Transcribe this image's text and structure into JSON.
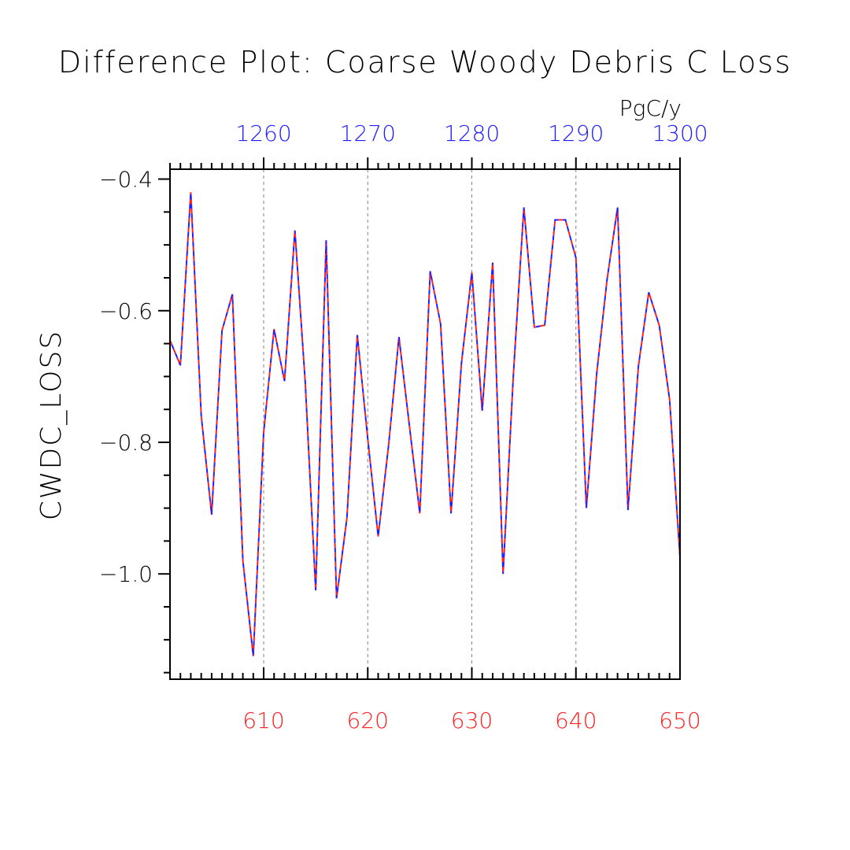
{
  "chart_data": {
    "type": "line",
    "title": "Difference Plot: Coarse Woody Debris C Loss",
    "units": "PgC/y",
    "ylabel": "CWDC_LOSS",
    "xlabel": "",
    "ylim": [
      -1.16,
      -0.385
    ],
    "bottom_axis": {
      "range": [
        601,
        650
      ],
      "ticks": [
        610,
        620,
        630,
        640,
        650
      ],
      "tick_labels": [
        "610",
        "620",
        "630",
        "640",
        "650"
      ],
      "color": "#ff2020"
    },
    "top_axis": {
      "range": [
        1251,
        1300
      ],
      "ticks": [
        1260,
        1270,
        1280,
        1290,
        1300
      ],
      "tick_labels": [
        "1260",
        "1270",
        "1280",
        "1290",
        "1300"
      ],
      "color": "#2020ff"
    },
    "y_ticks": [
      -0.4,
      -0.6,
      -0.8,
      -1.0
    ],
    "y_tick_labels": [
      "−0.4",
      "−0.6",
      "−0.8",
      "−1.0"
    ],
    "x": [
      601,
      602,
      603,
      604,
      605,
      606,
      607,
      608,
      609,
      610,
      611,
      612,
      613,
      614,
      615,
      616,
      617,
      618,
      619,
      620,
      621,
      622,
      623,
      624,
      625,
      626,
      627,
      628,
      629,
      630,
      631,
      632,
      633,
      634,
      635,
      636,
      637,
      638,
      639,
      640,
      641,
      642,
      643,
      644,
      645,
      646,
      647,
      648,
      649,
      650
    ],
    "series": [
      {
        "color": "#ff2020",
        "dash": true,
        "values": [
          -0.645,
          -0.683,
          -0.42,
          -0.76,
          -0.91,
          -0.63,
          -0.575,
          -0.98,
          -1.125,
          -0.785,
          -0.628,
          -0.707,
          -0.478,
          -0.71,
          -1.025,
          -0.493,
          -1.037,
          -0.915,
          -0.637,
          -0.795,
          -0.943,
          -0.805,
          -0.64,
          -0.775,
          -0.908,
          -0.54,
          -0.62,
          -0.908,
          -0.68,
          -0.542,
          -0.752,
          -0.527,
          -1.0,
          -0.695,
          -0.443,
          -0.625,
          -0.622,
          -0.462,
          -0.462,
          -0.52,
          -0.9,
          -0.695,
          -0.552,
          -0.443,
          -0.903,
          -0.685,
          -0.572,
          -0.622,
          -0.735,
          -0.975
        ]
      },
      {
        "color": "#2020ff",
        "dash": true,
        "values": [
          -0.645,
          -0.683,
          -0.42,
          -0.76,
          -0.91,
          -0.63,
          -0.575,
          -0.98,
          -1.125,
          -0.785,
          -0.628,
          -0.707,
          -0.478,
          -0.71,
          -1.025,
          -0.493,
          -1.037,
          -0.915,
          -0.637,
          -0.795,
          -0.943,
          -0.805,
          -0.64,
          -0.775,
          -0.908,
          -0.54,
          -0.62,
          -0.908,
          -0.68,
          -0.542,
          -0.752,
          -0.527,
          -1.0,
          -0.695,
          -0.443,
          -0.625,
          -0.622,
          -0.462,
          -0.462,
          -0.52,
          -0.9,
          -0.695,
          -0.552,
          -0.443,
          -0.903,
          -0.685,
          -0.572,
          -0.622,
          -0.735,
          -0.975
        ]
      }
    ],
    "grid": "vertical dashed at major ticks",
    "legend": "none"
  }
}
